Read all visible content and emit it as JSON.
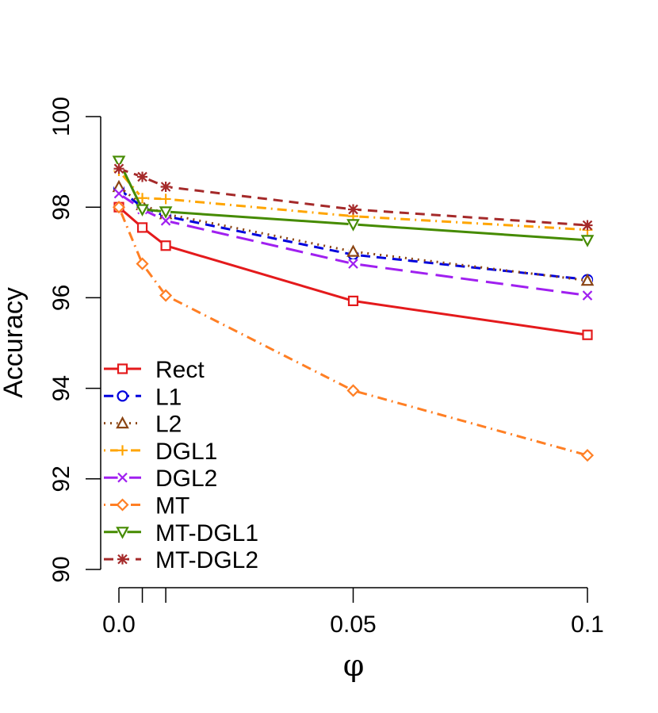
{
  "chart_data": {
    "type": "line",
    "title": "",
    "xlabel": "φ",
    "ylabel": "Accuracy",
    "xlim": [
      0.0,
      0.1
    ],
    "ylim": [
      90,
      100
    ],
    "x": [
      0.0,
      0.005,
      0.01,
      0.05,
      0.1
    ],
    "x_ticks": [
      0.0,
      0.005,
      0.01,
      0.05,
      0.1
    ],
    "x_tick_labels": [
      {
        "value": 0.0,
        "label": "0.0"
      },
      {
        "value": 0.05,
        "label": "0.05"
      },
      {
        "value": 0.1,
        "label": "0.1"
      }
    ],
    "y_ticks": [
      {
        "value": 90,
        "label": "90"
      },
      {
        "value": 92,
        "label": "92"
      },
      {
        "value": 94,
        "label": "94"
      },
      {
        "value": 96,
        "label": "96"
      },
      {
        "value": 98,
        "label": "98"
      },
      {
        "value": 100,
        "label": "100"
      }
    ],
    "legend_position": "bottom-left",
    "series": [
      {
        "name": "Rect",
        "color": "#e41a1c",
        "dash": "solid",
        "marker": "square",
        "values": [
          98.0,
          97.55,
          97.15,
          95.93,
          95.18
        ]
      },
      {
        "name": "L1",
        "color": "#0000dd",
        "dash": "dashed",
        "marker": "circle",
        "values": [
          98.4,
          98.0,
          97.8,
          96.95,
          96.4
        ]
      },
      {
        "name": "L2",
        "color": "#8b4513",
        "dash": "dotted",
        "marker": "triangle-up",
        "values": [
          98.45,
          98.05,
          97.85,
          97.02,
          96.38
        ]
      },
      {
        "name": "DGL1",
        "color": "#ffa500",
        "dash": "dotdash",
        "marker": "plus",
        "values": [
          98.8,
          98.2,
          98.18,
          97.8,
          97.5
        ]
      },
      {
        "name": "DGL2",
        "color": "#a020f0",
        "dash": "longdash",
        "marker": "cross",
        "values": [
          98.3,
          97.95,
          97.7,
          96.75,
          96.05
        ]
      },
      {
        "name": "MT",
        "color": "#ff7f24",
        "dash": "dotdash",
        "marker": "diamond",
        "values": [
          98.0,
          96.75,
          96.05,
          93.95,
          92.52
        ]
      },
      {
        "name": "MT-DGL1",
        "color": "#458b00",
        "dash": "solid",
        "marker": "triangle-down",
        "values": [
          99.02,
          97.95,
          97.9,
          97.62,
          97.27
        ]
      },
      {
        "name": "MT-DGL2",
        "color": "#a52a2a",
        "dash": "dashed",
        "marker": "asterisk",
        "values": [
          98.85,
          98.67,
          98.45,
          97.95,
          97.6
        ]
      }
    ]
  }
}
